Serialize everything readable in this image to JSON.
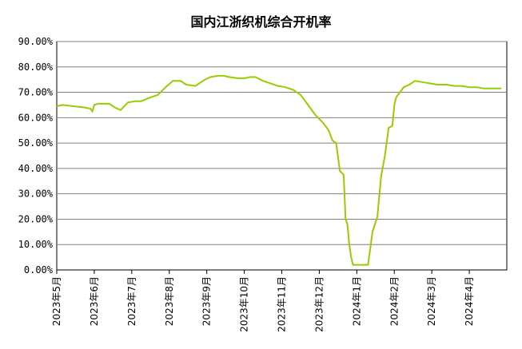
{
  "chart_data": {
    "type": "line",
    "title": "国内江浙织机综合开机率",
    "xlabel": "",
    "ylabel": "",
    "y_tick_labels": [
      "0.00%",
      "10.00%",
      "20.00%",
      "30.00%",
      "40.00%",
      "50.00%",
      "60.00%",
      "70.00%",
      "80.00%",
      "90.00%"
    ],
    "ylim": [
      0,
      90
    ],
    "x_tick_labels": [
      "2023年5月",
      "2023年6月",
      "2023年7月",
      "2023年8月",
      "2023年9月",
      "2023年10月",
      "2023年11月",
      "2023年12月",
      "2024年1月",
      "2024年2月",
      "2024年3月",
      "2024年4月"
    ],
    "grid": true,
    "line_color": "#99cc00",
    "series": [
      {
        "name": "",
        "x": [
          0.0,
          0.15,
          0.45,
          0.75,
          0.9,
          0.95,
          1.0,
          1.1,
          1.4,
          1.55,
          1.7,
          1.9,
          2.1,
          2.25,
          2.5,
          2.7,
          2.9,
          3.1,
          3.3,
          3.45,
          3.7,
          3.95,
          4.1,
          4.3,
          4.45,
          4.6,
          4.85,
          5.0,
          5.15,
          5.3,
          5.5,
          5.7,
          5.9,
          6.1,
          6.3,
          6.5,
          6.7,
          6.9,
          7.1,
          7.25,
          7.35,
          7.45,
          7.55,
          7.65,
          7.7,
          7.75,
          7.8,
          7.85,
          7.9,
          7.95,
          8.0,
          8.05,
          8.1,
          8.2,
          8.3,
          8.42,
          8.55,
          8.65,
          8.75,
          8.85,
          8.92,
          8.95,
          9.0,
          9.05,
          9.1,
          9.15,
          9.25,
          9.4,
          9.55,
          9.75,
          9.95,
          10.15,
          10.4,
          10.6,
          10.8,
          11.0,
          11.2,
          11.4,
          11.6,
          11.85
        ],
        "values": [
          64.5,
          65.0,
          64.5,
          64.0,
          63.5,
          62.5,
          65.0,
          65.5,
          65.5,
          64.0,
          63.0,
          66.0,
          66.5,
          66.5,
          68.0,
          69.0,
          72.0,
          74.5,
          74.5,
          73.0,
          72.5,
          75.0,
          76.0,
          76.5,
          76.5,
          76.0,
          75.5,
          75.5,
          76.0,
          76.0,
          74.5,
          73.5,
          72.5,
          72.0,
          71.0,
          69.0,
          65.0,
          61.0,
          58.0,
          55.0,
          51.0,
          50.0,
          39.0,
          37.5,
          20.0,
          18.0,
          10.0,
          5.0,
          2.0,
          2.0,
          2.0,
          2.0,
          2.0,
          2.0,
          2.0,
          15.0,
          21.0,
          37.0,
          45.0,
          56.0,
          56.5,
          57.0,
          65.0,
          68.0,
          69.0,
          70.0,
          72.0,
          73.0,
          74.5,
          74.0,
          73.5,
          73.0,
          73.0,
          72.5,
          72.5,
          72.0,
          72.0,
          71.5,
          71.5,
          71.5
        ]
      }
    ]
  }
}
